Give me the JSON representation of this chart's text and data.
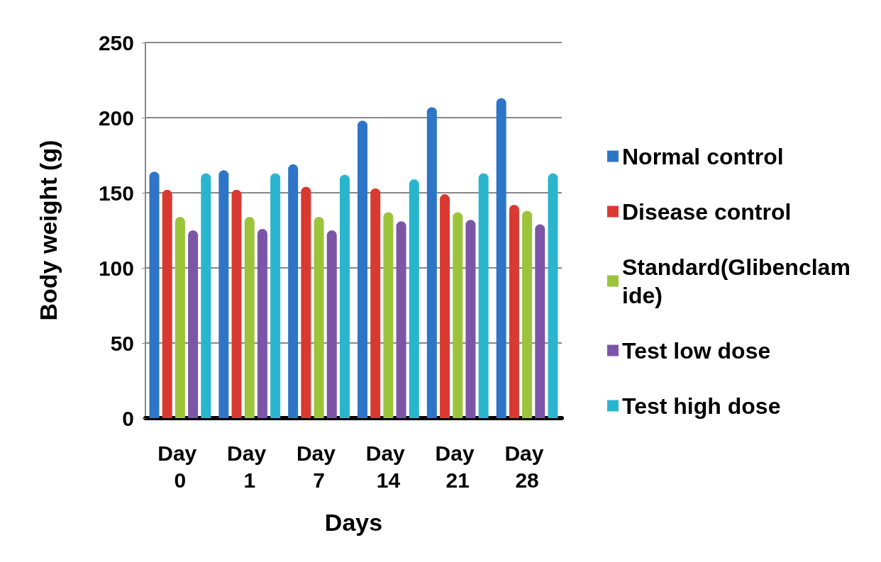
{
  "chart_data": {
    "type": "bar",
    "xlabel": "Days",
    "ylabel": "Body weight (g)",
    "categories": [
      "Day 0",
      "Day 1",
      "Day 7",
      "Day 14",
      "Day 21",
      "Day 28"
    ],
    "series": [
      {
        "name": "Normal control",
        "color": "#2e75c8",
        "values": [
          164,
          165,
          169,
          198,
          207,
          213
        ]
      },
      {
        "name": "Disease control",
        "color": "#d83a32",
        "values": [
          152,
          152,
          154,
          153,
          149,
          142
        ]
      },
      {
        "name": "Standard(Glibenclamide)",
        "color": "#9bc43a",
        "values": [
          134,
          134,
          134,
          137,
          137,
          138
        ]
      },
      {
        "name": "Test low dose",
        "color": "#7d55a8",
        "values": [
          125,
          126,
          125,
          131,
          132,
          129
        ]
      },
      {
        "name": "Test high dose",
        "color": "#2ab5cf",
        "values": [
          163,
          163,
          162,
          159,
          163,
          163
        ]
      }
    ],
    "ylim": [
      0,
      250
    ],
    "yticks": [
      0,
      50,
      100,
      150,
      200,
      250
    ],
    "grid": "y",
    "legend": "right"
  }
}
